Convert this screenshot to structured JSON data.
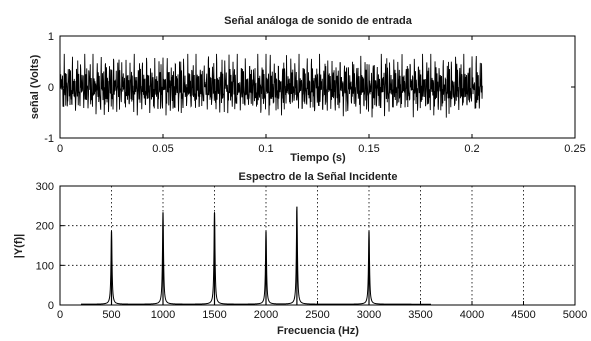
{
  "chart_data": [
    {
      "type": "line",
      "title": "Señal análoga de sonido de entrada",
      "xlabel": "Tiempo (s)",
      "ylabel": "señal (Volts)",
      "xlim": [
        0,
        0.25
      ],
      "ylim": [
        -1,
        1
      ],
      "xticks": [
        0,
        0.05,
        0.1,
        0.15,
        0.2,
        0.25
      ],
      "xtick_labels": [
        "0",
        "0.05",
        "0.1",
        "0.15",
        "0.2",
        "0.25"
      ],
      "yticks": [
        -1,
        0,
        1
      ],
      "ytick_labels": [
        "-1",
        "0",
        "1"
      ],
      "grid": false,
      "signal": {
        "t_start": 0,
        "t_end": 0.205,
        "amplitude_range": [
          -0.6,
          0.65
        ],
        "component_frequencies_hz": [
          500,
          1000,
          1500,
          2000,
          2300,
          3000
        ]
      }
    },
    {
      "type": "line",
      "title": "Espectro de la Señal Incidente",
      "xlabel": "Frecuencia (Hz)",
      "ylabel": "|Y(f)|",
      "xlim": [
        0,
        5000
      ],
      "ylim": [
        0,
        300
      ],
      "xticks": [
        0,
        500,
        1000,
        1500,
        2000,
        2500,
        3000,
        3500,
        4000,
        4500,
        5000
      ],
      "xtick_labels": [
        "0",
        "500",
        "1000",
        "1500",
        "2000",
        "2500",
        "3000",
        "3500",
        "4000",
        "4500",
        "5000"
      ],
      "yticks": [
        0,
        100,
        200,
        300
      ],
      "ytick_labels": [
        "0",
        "100",
        "200",
        "300"
      ],
      "grid": true,
      "peaks": [
        {
          "x": 500,
          "y": 185
        },
        {
          "x": 1000,
          "y": 232
        },
        {
          "x": 1500,
          "y": 232
        },
        {
          "x": 2000,
          "y": 185
        },
        {
          "x": 2300,
          "y": 248
        },
        {
          "x": 3000,
          "y": 185
        }
      ]
    }
  ]
}
